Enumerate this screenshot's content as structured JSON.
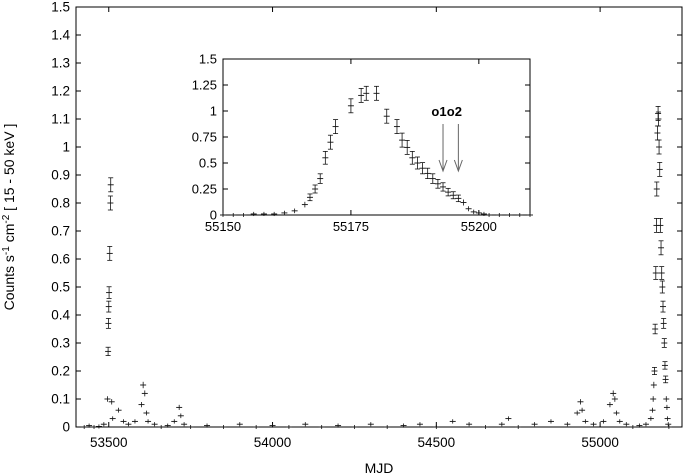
{
  "chart_data": [
    {
      "type": "scatter",
      "xlabel": "MJD",
      "ylabel": {
        "pre": "Counts s",
        "sup1": "-1",
        "mid": " cm",
        "sup2": "-2",
        "post": " [ 15 - 50 keV ]"
      },
      "xlim": [
        53400,
        55250
      ],
      "ylim": [
        0,
        1.5
      ],
      "xticks": [
        53500,
        54000,
        54500,
        55000
      ],
      "yticks": [
        0,
        0.1,
        0.2,
        0.3,
        0.4,
        0.5,
        0.6,
        0.7,
        0.8,
        0.9,
        1,
        1.1,
        1.2,
        1.3,
        1.4,
        1.5
      ],
      "ytick_labels": [
        "0",
        "0.1",
        "0.2",
        "0.3",
        "0.4",
        "0.5",
        "0.6",
        "0.7",
        "0.8",
        "0.9",
        "1",
        "1.1",
        "1.2",
        "1.3",
        "1.4",
        "1.5"
      ],
      "grid": false,
      "series": [
        {
          "marker": "cross with error bars",
          "color": "#000000",
          "points": [
            [
              53425,
              0.0
            ],
            [
              53440,
              0.005
            ],
            [
              53455,
              0.0
            ],
            [
              53470,
              0.002
            ],
            [
              53485,
              0.01
            ],
            [
              53496,
              0.1
            ],
            [
              53498,
              0.27
            ],
            [
              53499,
              0.37
            ],
            [
              53500,
              0.43
            ],
            [
              53501,
              0.48
            ],
            [
              53503,
              0.62
            ],
            [
              53505,
              0.8
            ],
            [
              53506,
              0.865
            ],
            [
              53509,
              0.09
            ],
            [
              53512,
              0.03
            ],
            [
              53530,
              0.06
            ],
            [
              53545,
              0.02
            ],
            [
              53560,
              0.01
            ],
            [
              53580,
              0.02
            ],
            [
              53600,
              0.08
            ],
            [
              53605,
              0.15
            ],
            [
              53610,
              0.12
            ],
            [
              53615,
              0.05
            ],
            [
              53620,
              0.02
            ],
            [
              53640,
              0.01
            ],
            [
              53660,
              0.0
            ],
            [
              53680,
              0.005
            ],
            [
              53700,
              0.02
            ],
            [
              53715,
              0.07
            ],
            [
              53720,
              0.04
            ],
            [
              53730,
              0.01
            ],
            [
              53750,
              0.0
            ],
            [
              53800,
              0.005
            ],
            [
              53850,
              0.0
            ],
            [
              53900,
              0.01
            ],
            [
              53950,
              0.0
            ],
            [
              54000,
              0.005
            ],
            [
              54050,
              0.0
            ],
            [
              54100,
              0.01
            ],
            [
              54150,
              0.0
            ],
            [
              54200,
              0.005
            ],
            [
              54250,
              0.0
            ],
            [
              54300,
              0.01
            ],
            [
              54350,
              0.0
            ],
            [
              54400,
              0.005
            ],
            [
              54450,
              0.01
            ],
            [
              54500,
              0.0
            ],
            [
              54550,
              0.02
            ],
            [
              54600,
              0.01
            ],
            [
              54650,
              0.0
            ],
            [
              54700,
              0.01
            ],
            [
              54720,
              0.03
            ],
            [
              54750,
              0.0
            ],
            [
              54800,
              0.01
            ],
            [
              54850,
              0.02
            ],
            [
              54900,
              0.01
            ],
            [
              54930,
              0.05
            ],
            [
              54940,
              0.09
            ],
            [
              54945,
              0.06
            ],
            [
              54955,
              0.02
            ],
            [
              54980,
              0.01
            ],
            [
              55010,
              0.02
            ],
            [
              55030,
              0.08
            ],
            [
              55040,
              0.12
            ],
            [
              55045,
              0.1
            ],
            [
              55050,
              0.05
            ],
            [
              55060,
              0.02
            ],
            [
              55080,
              0.01
            ],
            [
              55100,
              0.0
            ],
            [
              55120,
              0.005
            ],
            [
              55140,
              0.01
            ],
            [
              55155,
              0.03
            ],
            [
              55160,
              0.06
            ],
            [
              55162,
              0.1
            ],
            [
              55164,
              0.15
            ],
            [
              55166,
              0.2
            ],
            [
              55168,
              0.35
            ],
            [
              55170,
              0.55
            ],
            [
              55172,
              0.72
            ],
            [
              55173,
              0.85
            ],
            [
              55175,
              1.05
            ],
            [
              55177,
              1.12
            ],
            [
              55178,
              1.1
            ],
            [
              55180,
              1.0
            ],
            [
              55182,
              0.92
            ],
            [
              55184,
              0.72
            ],
            [
              55186,
              0.64
            ],
            [
              55188,
              0.55
            ],
            [
              55190,
              0.5
            ],
            [
              55192,
              0.43
            ],
            [
              55194,
              0.37
            ],
            [
              55196,
              0.3
            ],
            [
              55198,
              0.22
            ],
            [
              55200,
              0.17
            ],
            [
              55202,
              0.1
            ],
            [
              55204,
              0.07
            ],
            [
              55206,
              0.03
            ],
            [
              55208,
              0.01
            ],
            [
              55210,
              0.0
            ]
          ]
        }
      ]
    },
    {
      "type": "scatter",
      "inset": true,
      "xlim": [
        55150,
        55210
      ],
      "ylim": [
        0,
        1.5
      ],
      "xticks": [
        55150,
        55175,
        55200
      ],
      "yticks": [
        0,
        0.25,
        0.5,
        0.75,
        1,
        1.25,
        1.5
      ],
      "ytick_labels": [
        "0",
        "0.25",
        "0.5",
        "0.75",
        "1",
        "1.25",
        "1.5"
      ],
      "annotations": [
        {
          "label": "o1",
          "x": 55193
        },
        {
          "label": "o2",
          "x": 55196
        }
      ],
      "series": [
        {
          "marker": "cross with error bars",
          "color": "#000000",
          "points": [
            [
              55150,
              0.0
            ],
            [
              55152,
              0.0
            ],
            [
              55154,
              0.0
            ],
            [
              55156,
              0.01
            ],
            [
              55158,
              0.01
            ],
            [
              55160,
              0.01
            ],
            [
              55162,
              0.02
            ],
            [
              55164,
              0.04
            ],
            [
              55166,
              0.1
            ],
            [
              55167,
              0.17
            ],
            [
              55168,
              0.25
            ],
            [
              55169,
              0.35
            ],
            [
              55170,
              0.55
            ],
            [
              55171,
              0.7
            ],
            [
              55172,
              0.85
            ],
            [
              55175,
              1.05
            ],
            [
              55177,
              1.15
            ],
            [
              55178,
              1.17
            ],
            [
              55180,
              1.17
            ],
            [
              55182,
              0.95
            ],
            [
              55184,
              0.85
            ],
            [
              55185,
              0.72
            ],
            [
              55186,
              0.65
            ],
            [
              55187,
              0.55
            ],
            [
              55188,
              0.5
            ],
            [
              55189,
              0.45
            ],
            [
              55190,
              0.4
            ],
            [
              55191,
              0.35
            ],
            [
              55192,
              0.3
            ],
            [
              55193,
              0.27
            ],
            [
              55194,
              0.22
            ],
            [
              55195,
              0.19
            ],
            [
              55196,
              0.16
            ],
            [
              55197,
              0.12
            ],
            [
              55198,
              0.06
            ],
            [
              55199,
              0.03
            ],
            [
              55200,
              0.02
            ],
            [
              55201,
              0.01
            ],
            [
              55202,
              0.0
            ],
            [
              55204,
              0.0
            ],
            [
              55206,
              0.0
            ],
            [
              55208,
              0.0
            ],
            [
              55210,
              0.0
            ]
          ]
        }
      ]
    }
  ]
}
